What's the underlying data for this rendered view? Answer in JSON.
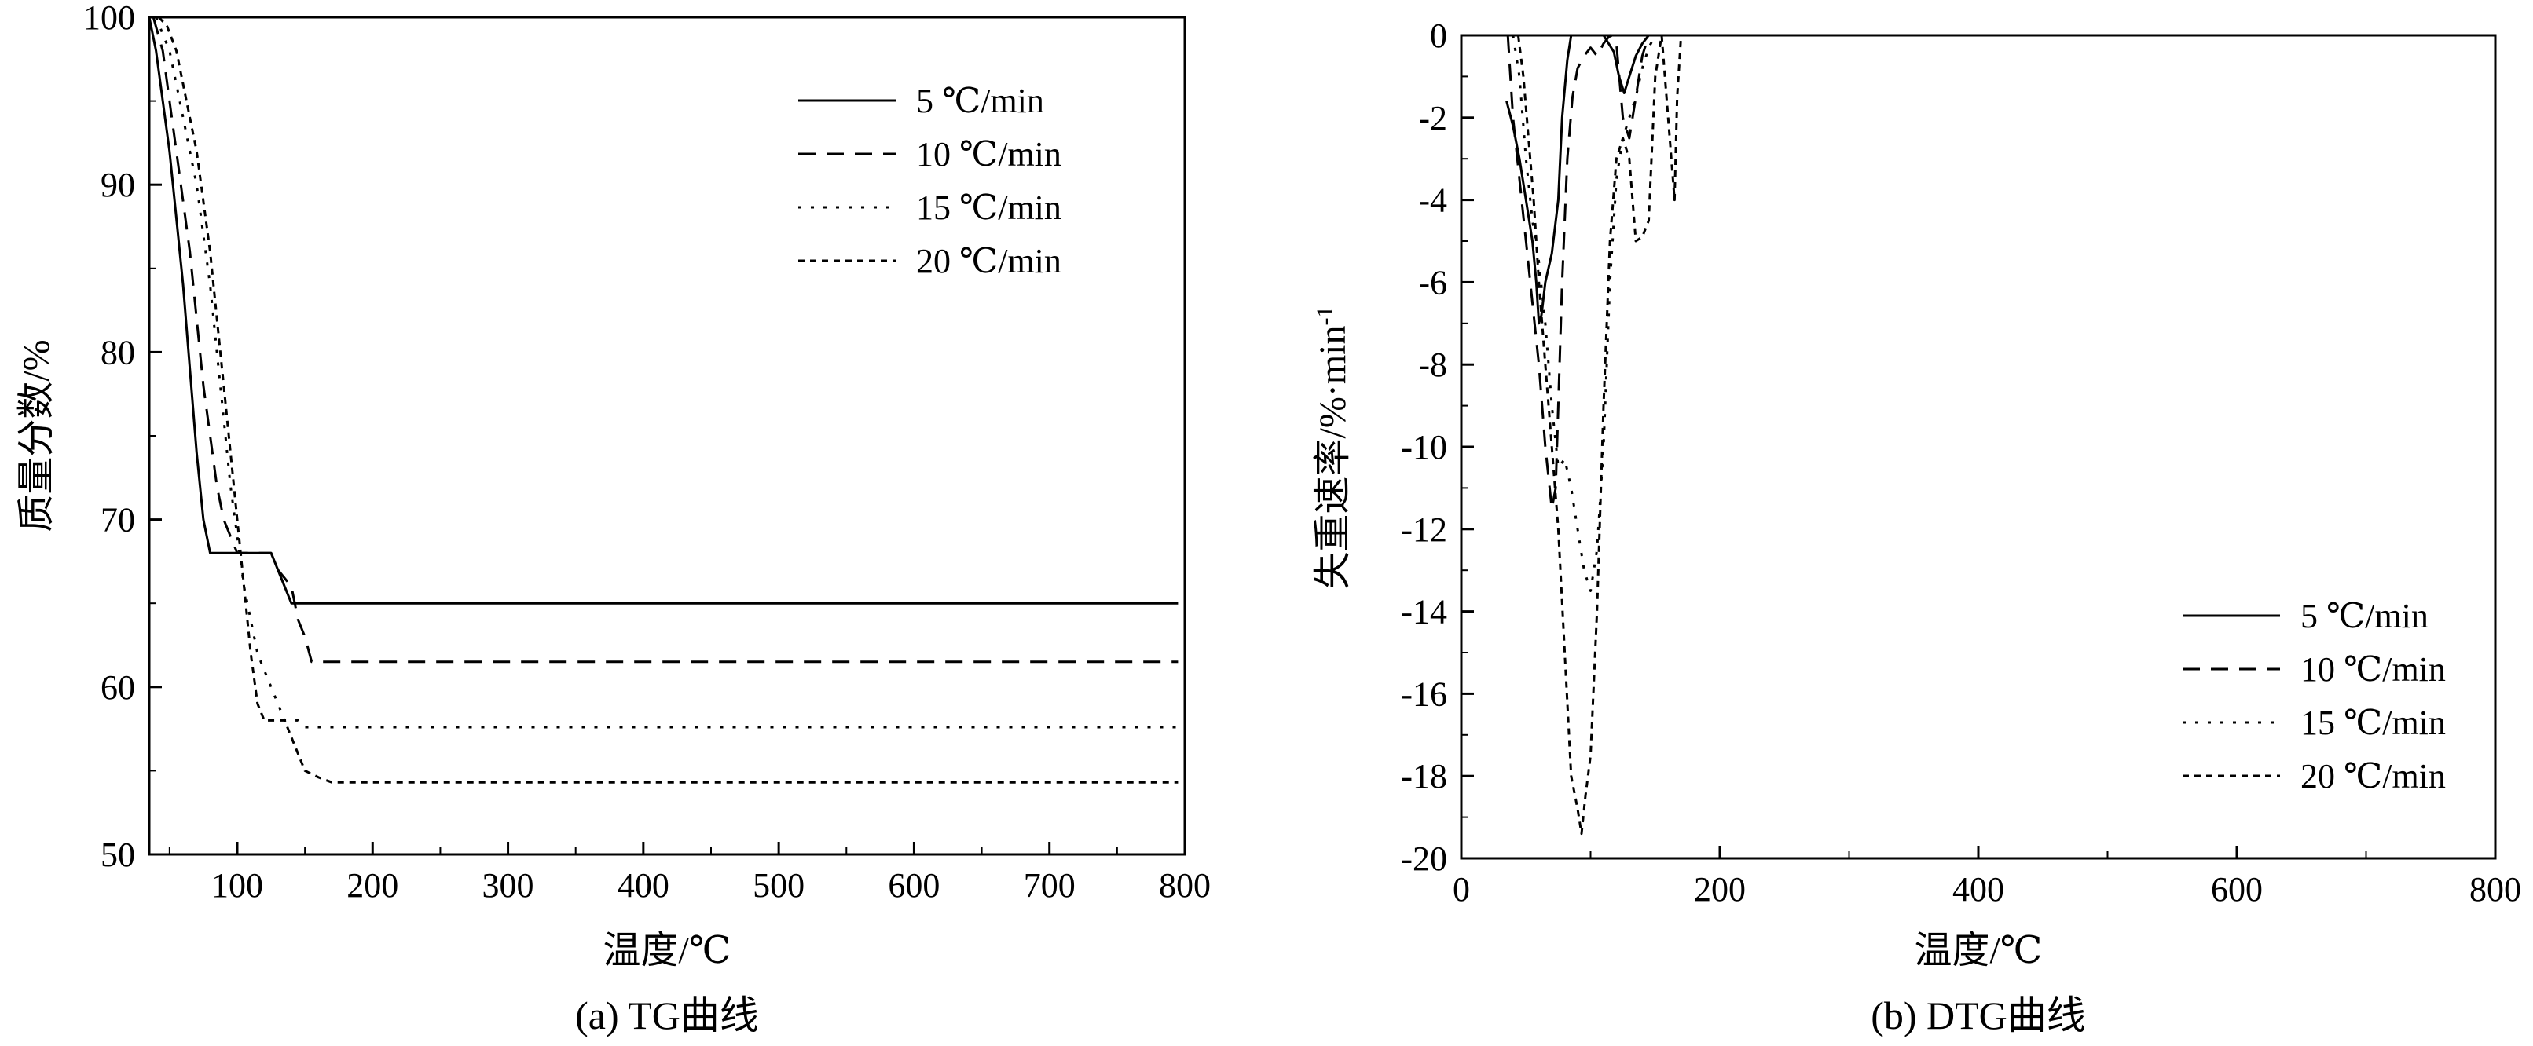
{
  "chart_data": [
    {
      "type": "line",
      "caption": "(a) TG曲线",
      "xlabel": "温度/℃",
      "ylabel": "质量分数/%",
      "xlim": [
        35,
        800
      ],
      "ylim": [
        50,
        100
      ],
      "xticks": [
        100,
        200,
        300,
        400,
        500,
        600,
        700,
        800
      ],
      "yticks": [
        50,
        60,
        70,
        80,
        90,
        100
      ],
      "legend_position": "top-right",
      "series": [
        {
          "name": "5 ℃/min",
          "dash": "solid",
          "points": [
            [
              35,
              100
            ],
            [
              40,
              98
            ],
            [
              45,
              95
            ],
            [
              50,
              92
            ],
            [
              55,
              88
            ],
            [
              60,
              84
            ],
            [
              65,
              79
            ],
            [
              70,
              74
            ],
            [
              75,
              70
            ],
            [
              80,
              68
            ],
            [
              90,
              68
            ],
            [
              100,
              68
            ],
            [
              110,
              68
            ],
            [
              120,
              68
            ],
            [
              125,
              68
            ],
            [
              130,
              67
            ],
            [
              135,
              66
            ],
            [
              140,
              65
            ],
            [
              145,
              65
            ],
            [
              150,
              65
            ],
            [
              200,
              65
            ],
            [
              300,
              65
            ],
            [
              400,
              65
            ],
            [
              500,
              65
            ],
            [
              600,
              65
            ],
            [
              700,
              65
            ],
            [
              795,
              65
            ]
          ]
        },
        {
          "name": "10 ℃/min",
          "dash": "dash",
          "points": [
            [
              38,
              100
            ],
            [
              45,
              98
            ],
            [
              50,
              95
            ],
            [
              55,
              92
            ],
            [
              60,
              89
            ],
            [
              65,
              86
            ],
            [
              70,
              82
            ],
            [
              75,
              78
            ],
            [
              80,
              75
            ],
            [
              85,
              72
            ],
            [
              90,
              70
            ],
            [
              95,
              69
            ],
            [
              100,
              68
            ],
            [
              110,
              68
            ],
            [
              120,
              68
            ],
            [
              125,
              68
            ],
            [
              130,
              67
            ],
            [
              140,
              66
            ],
            [
              145,
              64
            ],
            [
              150,
              63
            ],
            [
              155,
              61.5
            ],
            [
              200,
              61.5
            ],
            [
              300,
              61.5
            ],
            [
              400,
              61.5
            ],
            [
              500,
              61.5
            ],
            [
              600,
              61.5
            ],
            [
              700,
              61.5
            ],
            [
              795,
              61.5
            ]
          ]
        },
        {
          "name": "15 ℃/min",
          "dash": "dot",
          "points": [
            [
              40,
              100
            ],
            [
              45,
              99
            ],
            [
              50,
              98
            ],
            [
              55,
              96
            ],
            [
              60,
              94
            ],
            [
              65,
              92
            ],
            [
              70,
              90
            ],
            [
              75,
              87
            ],
            [
              80,
              84
            ],
            [
              85,
              80
            ],
            [
              90,
              76
            ],
            [
              95,
              72
            ],
            [
              100,
              69
            ],
            [
              105,
              66
            ],
            [
              110,
              64
            ],
            [
              115,
              62
            ],
            [
              120,
              61
            ],
            [
              125,
              60
            ],
            [
              130,
              59
            ],
            [
              135,
              58
            ],
            [
              140,
              58
            ],
            [
              145,
              58
            ],
            [
              150,
              57.6
            ],
            [
              200,
              57.6
            ],
            [
              300,
              57.6
            ],
            [
              400,
              57.6
            ],
            [
              500,
              57.6
            ],
            [
              600,
              57.6
            ],
            [
              700,
              57.6
            ],
            [
              795,
              57.6
            ]
          ]
        },
        {
          "name": "20 ℃/min",
          "dash": "fine",
          "points": [
            [
              42,
              100
            ],
            [
              48,
              99.5
            ],
            [
              55,
              98
            ],
            [
              60,
              96
            ],
            [
              65,
              94
            ],
            [
              70,
              92
            ],
            [
              75,
              89
            ],
            [
              80,
              86
            ],
            [
              85,
              82
            ],
            [
              90,
              78
            ],
            [
              95,
              74
            ],
            [
              100,
              70
            ],
            [
              105,
              66
            ],
            [
              110,
              62
            ],
            [
              115,
              59
            ],
            [
              120,
              58
            ],
            [
              125,
              58
            ],
            [
              130,
              58
            ],
            [
              135,
              58
            ],
            [
              140,
              57
            ],
            [
              145,
              56
            ],
            [
              150,
              55
            ],
            [
              160,
              54.6
            ],
            [
              170,
              54.3
            ],
            [
              200,
              54.3
            ],
            [
              300,
              54.3
            ],
            [
              400,
              54.3
            ],
            [
              500,
              54.3
            ],
            [
              600,
              54.3
            ],
            [
              700,
              54.3
            ],
            [
              795,
              54.3
            ]
          ]
        }
      ]
    },
    {
      "type": "line",
      "caption": "(b) DTG曲线",
      "xlabel": "温度/℃",
      "ylabel": "失重速率/%·min-1",
      "xlim": [
        0,
        800
      ],
      "ylim": [
        -20,
        0
      ],
      "xticks": [
        0,
        200,
        400,
        600,
        800
      ],
      "yticks": [
        -20,
        -18,
        -16,
        -14,
        -12,
        -10,
        -8,
        -6,
        -4,
        -2,
        0
      ],
      "legend_position": "bottom-right",
      "series": [
        {
          "name": "5 ℃/min",
          "dash": "solid",
          "points": [
            [
              35,
              -1.6
            ],
            [
              40,
              -2.2
            ],
            [
              45,
              -3
            ],
            [
              50,
              -4
            ],
            [
              55,
              -5
            ],
            [
              58,
              -6
            ],
            [
              60,
              -7
            ],
            [
              62,
              -6.8
            ],
            [
              65,
              -6
            ],
            [
              70,
              -5.3
            ],
            [
              75,
              -4
            ],
            [
              78,
              -2
            ],
            [
              82,
              -0.6
            ],
            [
              85,
              0
            ],
            [
              90,
              0
            ],
            [
              100,
              0
            ],
            [
              110,
              0
            ],
            [
              118,
              -0.4
            ],
            [
              122,
              -1
            ],
            [
              126,
              -1.4
            ],
            [
              130,
              -1
            ],
            [
              135,
              -0.5
            ],
            [
              140,
              -0.2
            ],
            [
              145,
              0
            ],
            [
              200,
              0
            ],
            [
              400,
              0
            ],
            [
              600,
              0
            ],
            [
              800,
              0
            ]
          ]
        },
        {
          "name": "10 ℃/min",
          "dash": "dash",
          "points": [
            [
              36,
              0
            ],
            [
              38,
              -1
            ],
            [
              40,
              -2
            ],
            [
              45,
              -3.5
            ],
            [
              50,
              -5
            ],
            [
              55,
              -6.5
            ],
            [
              60,
              -8
            ],
            [
              65,
              -10
            ],
            [
              70,
              -11.5
            ],
            [
              73,
              -11
            ],
            [
              75,
              -9
            ],
            [
              78,
              -6
            ],
            [
              82,
              -3
            ],
            [
              86,
              -1.5
            ],
            [
              90,
              -0.8
            ],
            [
              95,
              -0.5
            ],
            [
              100,
              -0.3
            ],
            [
              105,
              -0.5
            ],
            [
              110,
              -0.2
            ],
            [
              115,
              0
            ],
            [
              120,
              -0.2
            ],
            [
              125,
              -2
            ],
            [
              130,
              -2.5
            ],
            [
              135,
              -1.5
            ],
            [
              140,
              -0.5
            ],
            [
              145,
              0
            ],
            [
              200,
              0
            ],
            [
              400,
              0
            ],
            [
              600,
              0
            ],
            [
              800,
              0
            ]
          ]
        },
        {
          "name": "15 ℃/min",
          "dash": "dot",
          "points": [
            [
              40,
              0
            ],
            [
              45,
              -1
            ],
            [
              50,
              -3
            ],
            [
              55,
              -4.5
            ],
            [
              60,
              -5.5
            ],
            [
              65,
              -7
            ],
            [
              70,
              -9
            ],
            [
              75,
              -10.5
            ],
            [
              80,
              -10.3
            ],
            [
              85,
              -11
            ],
            [
              90,
              -12
            ],
            [
              95,
              -13
            ],
            [
              100,
              -13.5
            ],
            [
              105,
              -12.5
            ],
            [
              110,
              -10
            ],
            [
              115,
              -6
            ],
            [
              120,
              -3.5
            ],
            [
              125,
              -2.5
            ],
            [
              130,
              -2
            ],
            [
              135,
              -1.5
            ],
            [
              140,
              -0.8
            ],
            [
              145,
              -0.3
            ],
            [
              150,
              0
            ],
            [
              200,
              0
            ],
            [
              400,
              0
            ],
            [
              600,
              0
            ],
            [
              800,
              0
            ]
          ]
        },
        {
          "name": "20 ℃/min",
          "dash": "fine",
          "points": [
            [
              44,
              0
            ],
            [
              48,
              -1
            ],
            [
              52,
              -2.5
            ],
            [
              56,
              -4
            ],
            [
              60,
              -6
            ],
            [
              65,
              -8
            ],
            [
              70,
              -10
            ],
            [
              75,
              -12
            ],
            [
              80,
              -15
            ],
            [
              85,
              -18
            ],
            [
              90,
              -18.8
            ],
            [
              93,
              -19.4
            ],
            [
              96,
              -18.5
            ],
            [
              100,
              -17.5
            ],
            [
              105,
              -14
            ],
            [
              110,
              -9
            ],
            [
              115,
              -5
            ],
            [
              120,
              -3
            ],
            [
              125,
              -2.5
            ],
            [
              130,
              -3
            ],
            [
              135,
              -5
            ],
            [
              140,
              -4.9
            ],
            [
              145,
              -4.5
            ],
            [
              150,
              -1
            ],
            [
              155,
              0
            ],
            [
              160,
              -2
            ],
            [
              165,
              -4
            ],
            [
              167,
              -1.5
            ],
            [
              170,
              0
            ],
            [
              200,
              0
            ],
            [
              400,
              0
            ],
            [
              600,
              0
            ],
            [
              800,
              0
            ]
          ]
        }
      ]
    }
  ]
}
